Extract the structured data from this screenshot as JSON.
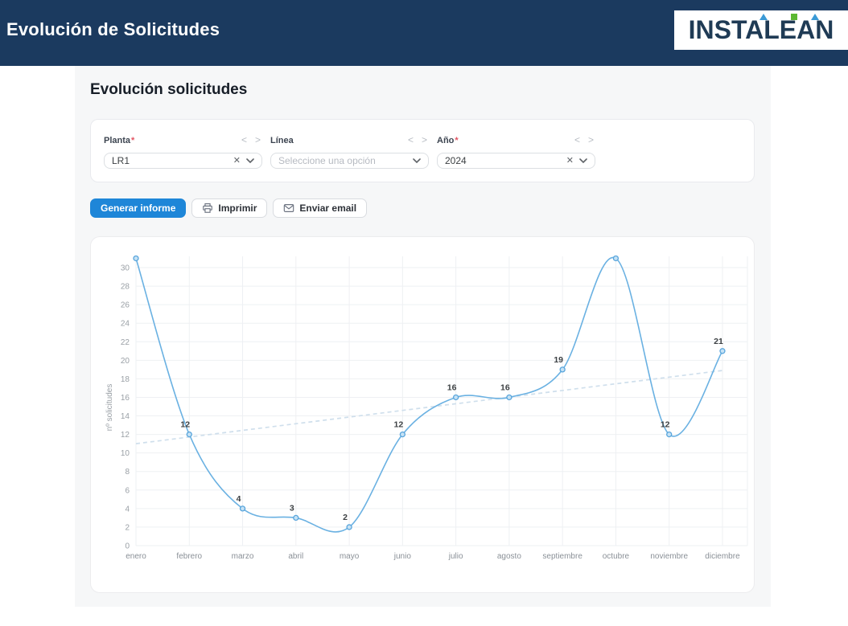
{
  "header": {
    "title": "Evolución de Solicitudes",
    "logo_text": "INSTALEAN",
    "colors": {
      "header_bg": "#1b3a5f",
      "logo_blue": "#3b9ad6",
      "logo_green": "#5cb832"
    }
  },
  "panel": {
    "title": "Evolución solicitudes"
  },
  "filters": {
    "items": [
      {
        "label": "Planta",
        "required_mark": "*",
        "value": "LR1"
      },
      {
        "label": "Línea",
        "placeholder": "Seleccione una opción"
      },
      {
        "label": "Año",
        "required_mark": "*",
        "value": "2024"
      }
    ],
    "pager_prev": "<",
    "pager_next": ">",
    "clear_icon": "✕"
  },
  "actions": {
    "generate_label": "Generar informe",
    "print_label": "Imprimir",
    "email_label": "Enviar email"
  },
  "chart_data": {
    "type": "line",
    "categories": [
      "enero",
      "febrero",
      "marzo",
      "abril",
      "mayo",
      "junio",
      "julio",
      "agosto",
      "septiembre",
      "octubre",
      "noviembre",
      "diciembre"
    ],
    "series": [
      {
        "name": "solicitudes",
        "values": [
          31,
          12,
          4,
          3,
          2,
          12,
          16,
          16,
          19,
          31,
          12,
          21
        ]
      }
    ],
    "point_labels_shown": [
      false,
      true,
      true,
      true,
      true,
      true,
      true,
      true,
      true,
      false,
      true,
      true
    ],
    "trendline": {
      "style": "dashed",
      "start_value": 11,
      "end_value": 18.9
    },
    "title": "",
    "xlabel": "",
    "ylabel": "nº solicitudes",
    "ylim": [
      0,
      31.5
    ],
    "ytick_step": 2,
    "grid": true,
    "legend": "none",
    "line_color": "#6ab1e2",
    "marker_fill": "#c6e2f5",
    "marker_stroke": "#58a5dc",
    "trend_color": "#cfdfec",
    "grid_color": "#eef0f3",
    "tick_color": "#9aa0a6",
    "point_label_color": "#3c4043"
  }
}
